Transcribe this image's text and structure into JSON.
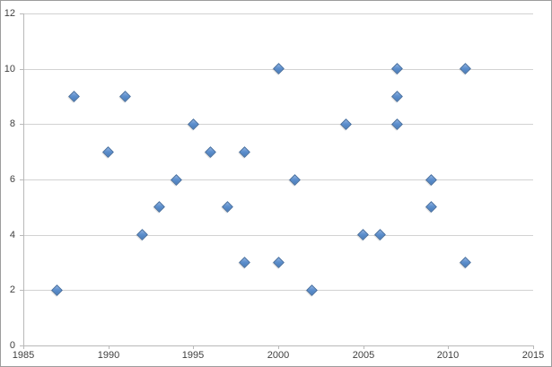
{
  "chart": {
    "colors": {
      "background": "#ffffff",
      "frame_border": "#9c9c9c",
      "gridline": "#d2d2d2",
      "axis_line": "#b9b9b9",
      "tick_label": "#3f3f3f",
      "marker_fill": "#4a7ebb",
      "marker_fill_highlight": "#8fb2e2",
      "marker_border": "#3b679c"
    }
  },
  "chart_data": {
    "type": "scatter",
    "title": "",
    "xlabel": "",
    "ylabel": "",
    "legend_position": "none",
    "grid": "horizontal-major",
    "marker_shape": "diamond",
    "xlim": [
      1985,
      2015
    ],
    "ylim": [
      0,
      12
    ],
    "x_ticks": [
      1985,
      1990,
      1995,
      2000,
      2005,
      2010,
      2015
    ],
    "y_ticks": [
      0,
      2,
      4,
      6,
      8,
      10,
      12
    ],
    "points": [
      [
        1987,
        2
      ],
      [
        1988,
        9
      ],
      [
        1990,
        7
      ],
      [
        1991,
        9
      ],
      [
        1992,
        4
      ],
      [
        1993,
        5
      ],
      [
        1994,
        6
      ],
      [
        1995,
        8
      ],
      [
        1996,
        7
      ],
      [
        1997,
        5
      ],
      [
        1998,
        3
      ],
      [
        1998,
        7
      ],
      [
        2000,
        3
      ],
      [
        2000,
        10
      ],
      [
        2001,
        6
      ],
      [
        2002,
        2
      ],
      [
        2004,
        8
      ],
      [
        2005,
        4
      ],
      [
        2006,
        4
      ],
      [
        2007,
        8
      ],
      [
        2007,
        9
      ],
      [
        2007,
        10
      ],
      [
        2009,
        5
      ],
      [
        2009,
        6
      ],
      [
        2011,
        3
      ],
      [
        2011,
        10
      ]
    ]
  }
}
